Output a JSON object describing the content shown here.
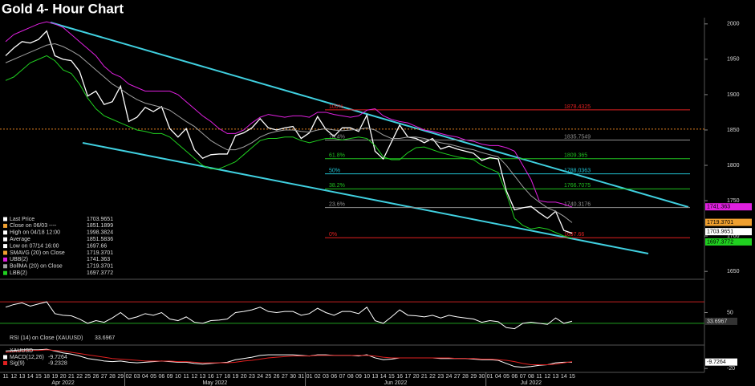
{
  "chart_data": {
    "type": "line",
    "title": "Gold 4- Hour Chart",
    "categories": [
      "11",
      "12",
      "13",
      "14",
      "15",
      "18",
      "19",
      "20",
      "21",
      "22",
      "25",
      "26",
      "27",
      "28",
      "29",
      "02",
      "03",
      "04",
      "05",
      "06",
      "09",
      "10",
      "11",
      "12",
      "13",
      "16",
      "17",
      "18",
      "19",
      "20",
      "23",
      "24",
      "25",
      "26",
      "27",
      "30",
      "31",
      "01",
      "02",
      "03",
      "06",
      "07",
      "08",
      "09",
      "10",
      "13",
      "14",
      "15",
      "16",
      "17",
      "20",
      "21",
      "22",
      "23",
      "24",
      "27",
      "28",
      "29",
      "30",
      "01",
      "04",
      "05",
      "06",
      "07",
      "08",
      "11",
      "12",
      "13",
      "14",
      "15"
    ],
    "months": [
      "Apr 2022",
      "May 2022",
      "Jun 2022",
      "Jul 2022"
    ],
    "ylim": [
      1640,
      2010
    ],
    "yticks": [
      1650,
      1700,
      1750,
      1800,
      1850,
      1900,
      1950,
      2000
    ],
    "series": [
      {
        "color": "#ffffff",
        "values": [
          1955,
          1966,
          1975,
          1973,
          1978,
          1990,
          1955,
          1950,
          1948,
          1933,
          1898,
          1905,
          1886,
          1890,
          1912,
          1862,
          1868,
          1882,
          1876,
          1883,
          1852,
          1840,
          1852,
          1822,
          1810,
          1815,
          1816,
          1816,
          1842,
          1846,
          1853,
          1866,
          1853,
          1850,
          1853,
          1855,
          1838,
          1846,
          1869,
          1851,
          1841,
          1853,
          1853,
          1848,
          1871,
          1820,
          1809,
          1833,
          1857,
          1840,
          1838,
          1832,
          1838,
          1823,
          1827,
          1823,
          1820,
          1817,
          1807,
          1811,
          1809,
          1764,
          1737,
          1740,
          1742,
          1733,
          1725,
          1735,
          1708,
          1704
        ]
      },
      {
        "color": "#a0a0a0",
        "values": [
          1945,
          1950,
          1955,
          1960,
          1965,
          1970,
          1972,
          1968,
          1962,
          1955,
          1945,
          1935,
          1925,
          1915,
          1908,
          1900,
          1893,
          1888,
          1885,
          1882,
          1878,
          1870,
          1862,
          1855,
          1845,
          1835,
          1828,
          1822,
          1822,
          1826,
          1832,
          1840,
          1845,
          1848,
          1850,
          1850,
          1848,
          1847,
          1850,
          1852,
          1850,
          1849,
          1850,
          1851,
          1853,
          1850,
          1843,
          1838,
          1838,
          1840,
          1840,
          1838,
          1835,
          1832,
          1830,
          1827,
          1824,
          1822,
          1818,
          1815,
          1812,
          1800,
          1785,
          1770,
          1757,
          1748,
          1740,
          1735,
          1728,
          1719
        ]
      },
      {
        "color": "#e020e0",
        "values": [
          1975,
          1985,
          1990,
          1995,
          2000,
          2003,
          2000,
          1995,
          1985,
          1975,
          1965,
          1955,
          1940,
          1930,
          1925,
          1915,
          1910,
          1905,
          1905,
          1905,
          1905,
          1900,
          1890,
          1880,
          1870,
          1862,
          1852,
          1845,
          1845,
          1850,
          1860,
          1868,
          1872,
          1870,
          1868,
          1870,
          1870,
          1868,
          1875,
          1875,
          1872,
          1870,
          1868,
          1870,
          1878,
          1880,
          1870,
          1865,
          1862,
          1860,
          1855,
          1850,
          1848,
          1845,
          1842,
          1840,
          1836,
          1834,
          1830,
          1828,
          1828,
          1825,
          1820,
          1800,
          1780,
          1750,
          1748,
          1748,
          1745,
          1741
        ]
      },
      {
        "color": "#20d020",
        "values": [
          1920,
          1925,
          1935,
          1945,
          1950,
          1955,
          1948,
          1935,
          1930,
          1915,
          1895,
          1880,
          1870,
          1865,
          1860,
          1855,
          1850,
          1848,
          1845,
          1845,
          1840,
          1830,
          1820,
          1810,
          1800,
          1795,
          1795,
          1800,
          1805,
          1815,
          1825,
          1835,
          1838,
          1838,
          1840,
          1840,
          1835,
          1832,
          1835,
          1838,
          1838,
          1836,
          1838,
          1840,
          1838,
          1828,
          1812,
          1808,
          1808,
          1818,
          1825,
          1826,
          1822,
          1818,
          1815,
          1812,
          1810,
          1808,
          1800,
          1795,
          1790,
          1760,
          1725,
          1715,
          1710,
          1712,
          1710,
          1705,
          1700,
          1697
        ]
      }
    ],
    "legend": [
      {
        "label": "Last Price",
        "value": 1703.9651,
        "color": "#ffffff"
      },
      {
        "label": "Close on 06/03 ----",
        "value": 1851.1899,
        "color": "#f0a030"
      },
      {
        "label": "High on 04/18 12:00",
        "value": 1998.3824,
        "color": "#ffffff"
      },
      {
        "label": "Average",
        "value": 1851.5836,
        "color": "#ffffff"
      },
      {
        "label": "Low on 07/14 16:00",
        "value": 1697.66,
        "color": "#ffffff"
      },
      {
        "label": "SMAVG (20)  on Close",
        "value": 1719.3701,
        "color": "#f0a030"
      },
      {
        "label": "UBB(2)",
        "value": 1741.363,
        "color": "#e020e0"
      },
      {
        "label": "BollMA (20)  on Close",
        "value": 1719.3701,
        "color": "#a0a0a0"
      },
      {
        "label": "LBB(2)",
        "value": 1697.3772,
        "color": "#20d020"
      }
    ],
    "close_line": 1851.1899,
    "fib": [
      {
        "label": "0%",
        "value": 1697.66,
        "color": "#e02020"
      },
      {
        "label": "23.6%",
        "value": 1740.3176,
        "color": "#909090"
      },
      {
        "label": "38.2%",
        "value": 1766.7075,
        "color": "#20c020"
      },
      {
        "label": "50%",
        "value": 1788.0363,
        "color": "#20c0d0"
      },
      {
        "label": "61.8%",
        "value": 1809.365,
        "color": "#20c020"
      },
      {
        "label": "76.4%",
        "value": 1835.7549,
        "color": "#909090"
      },
      {
        "label": "100%",
        "value": 1878.4325,
        "color": "#e02020"
      }
    ],
    "rsi": {
      "legend": "RSI (14)  on Close (XAUUSD)",
      "last": 33.6967,
      "ylim": [
        0,
        100
      ],
      "yticks": [
        50
      ],
      "levels": [
        30,
        70
      ],
      "values": [
        60,
        65,
        68,
        62,
        66,
        70,
        48,
        45,
        44,
        38,
        30,
        35,
        32,
        40,
        50,
        38,
        42,
        48,
        45,
        50,
        38,
        35,
        42,
        32,
        30,
        35,
        36,
        38,
        50,
        52,
        55,
        60,
        52,
        50,
        52,
        52,
        45,
        48,
        58,
        50,
        45,
        52,
        52,
        48,
        60,
        35,
        30,
        42,
        55,
        45,
        44,
        42,
        45,
        40,
        45,
        42,
        40,
        38,
        32,
        35,
        33,
        22,
        20,
        30,
        32,
        30,
        28,
        40,
        30,
        34
      ]
    },
    "macd": {
      "legend": "XAUUSD",
      "labels": [
        "MACD(12,26)",
        "Sig(9)"
      ],
      "last": [
        -9.7264,
        -9.2328
      ],
      "ylim": [
        -25,
        15
      ],
      "yticks": [
        -20
      ],
      "series": [
        {
          "color": "#ffffff",
          "values": [
            8,
            9,
            10,
            10,
            10,
            11,
            8,
            5,
            3,
            0,
            -4,
            -6,
            -8,
            -9,
            -8,
            -10,
            -11,
            -10,
            -9,
            -8,
            -9,
            -10,
            -10,
            -12,
            -13,
            -12,
            -11,
            -10,
            -6,
            -4,
            -2,
            1,
            2,
            2,
            2,
            2,
            1,
            0,
            2,
            2,
            1,
            1,
            1,
            0,
            2,
            -3,
            -6,
            -5,
            -3,
            -3,
            -3,
            -3,
            -3,
            -4,
            -4,
            -4,
            -4,
            -5,
            -6,
            -6,
            -7,
            -12,
            -17,
            -18,
            -17,
            -15,
            -14,
            -11,
            -10,
            -10
          ]
        },
        {
          "color": "#e02020",
          "values": [
            6,
            7,
            8,
            9,
            9,
            10,
            9,
            8,
            6,
            4,
            2,
            0,
            -2,
            -4,
            -5,
            -6,
            -7,
            -8,
            -8,
            -8,
            -8,
            -9,
            -9,
            -10,
            -11,
            -11,
            -11,
            -11,
            -10,
            -8,
            -7,
            -5,
            -3,
            -2,
            -1,
            0,
            0,
            0,
            1,
            1,
            1,
            1,
            1,
            1,
            1,
            0,
            -2,
            -3,
            -3,
            -3,
            -3,
            -3,
            -3,
            -3,
            -3,
            -4,
            -4,
            -4,
            -5,
            -5,
            -6,
            -7,
            -9,
            -12,
            -14,
            -14,
            -14,
            -13,
            -11,
            -9
          ]
        }
      ]
    }
  }
}
